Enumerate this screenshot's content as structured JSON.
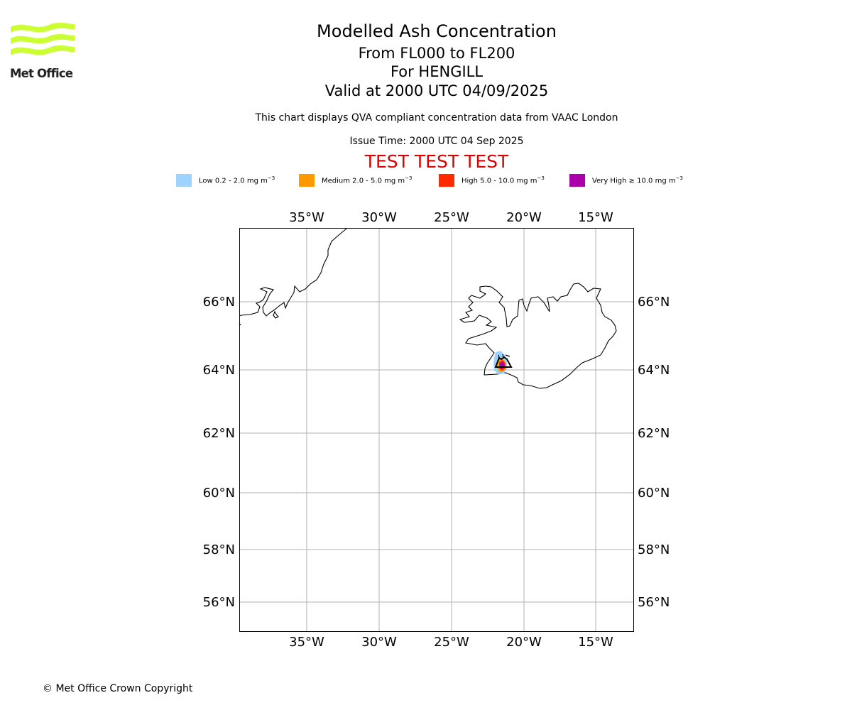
{
  "logo": {
    "text": "Met Office",
    "color": "#ccff33"
  },
  "title": {
    "line1": "Modelled Ash Concentration",
    "line2": "From FL000 to FL200",
    "line3": "For HENGILL",
    "line4": "Valid at 2000 UTC 04/09/2025"
  },
  "subtitle": "This chart displays QVA compliant concentration data from VAAC London",
  "issue_time": "Issue Time: 2000 UTC 04 Sep 2025",
  "test_banner": {
    "text": "TEST TEST TEST",
    "color": "#dd0000"
  },
  "legend": [
    {
      "label": "Low 0.2 - 2.0 mg m",
      "color": "#9ed3ff"
    },
    {
      "label": "Medium 2.0 - 5.0 mg m",
      "color": "#ff9900"
    },
    {
      "label": "High 5.0 - 10.0 mg m",
      "color": "#ff2a00"
    },
    {
      "label": "Very High  ≥  10.0 mg m",
      "color": "#aa00aa"
    }
  ],
  "legend_unit_exp": "−3",
  "map": {
    "lon_range": [
      -39.7,
      -12.4
    ],
    "lat_range": [
      55.0,
      68.2
    ],
    "lon_ticks": [
      "35°W",
      "30°W",
      "25°W",
      "20°W",
      "15°W"
    ],
    "lat_ticks": [
      "66°N",
      "64°N",
      "62°N",
      "60°N",
      "58°N",
      "56°N"
    ],
    "grid_color": "#b0b0b0",
    "volcano": "HENGILL"
  },
  "copyright": "© Met Office Crown Copyright"
}
